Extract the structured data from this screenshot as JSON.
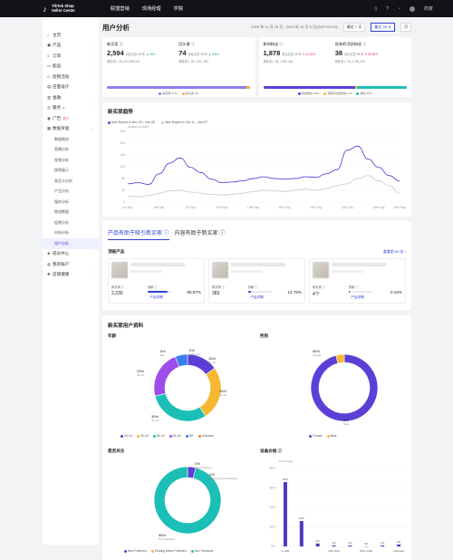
{
  "topbar": {
    "logo_line1": "TikTok Shop",
    "logo_line2": "Seller Center",
    "nav": [
      "联盟营销",
      "现场经理",
      "学院"
    ],
    "user": "商家"
  },
  "sidebar": {
    "items": [
      {
        "label": "主页",
        "icon": "home-icon",
        "glyph": "⌂",
        "arrow": ""
      },
      {
        "label": "产品",
        "icon": "box-icon",
        "glyph": "▣",
        "arrow": "›"
      },
      {
        "label": "订单",
        "icon": "list-icon",
        "glyph": "≡",
        "arrow": "›"
      },
      {
        "label": "船运",
        "icon": "truck-icon",
        "glyph": "▭",
        "arrow": "›"
      },
      {
        "label": "促销活动",
        "icon": "tag-icon",
        "glyph": "◇",
        "arrow": "›"
      },
      {
        "label": "店面设计",
        "icon": "shop-icon",
        "glyph": "▤",
        "arrow": ""
      },
      {
        "label": "金融",
        "icon": "wallet-icon",
        "glyph": "▥",
        "arrow": "›"
      },
      {
        "label": "服务",
        "icon": "service-icon",
        "glyph": "◎",
        "arrow": "›",
        "badge": "●"
      },
      {
        "label": "广告",
        "icon": "ad-icon",
        "glyph": "◉",
        "arrow": "",
        "badge": "热门"
      },
      {
        "label": "数据罗盘",
        "icon": "chart-icon",
        "glyph": "▦",
        "arrow": "⌄"
      }
    ],
    "subitems": [
      "数据概览",
      "直播分析",
      "视频分析",
      "按照展示",
      "商品卡分析",
      "产品分析",
      "服务分析",
      "物流数据",
      "促销分析",
      "市场分析",
      "用户分析"
    ],
    "bottom_items": [
      {
        "label": "成长中心",
        "icon": "growth-icon",
        "glyph": "◈",
        "arrow": "›"
      },
      {
        "label": "我的账户",
        "icon": "user-icon",
        "glyph": "◍",
        "arrow": "›"
      },
      {
        "label": "店铺健康",
        "icon": "health-icon",
        "glyph": "✚",
        "arrow": "›"
      }
    ]
  },
  "page": {
    "title": "用户分析",
    "date_text": "2022 年 11 月 29 日 - 2022 年 12 月 5 日(GMT+07:00)",
    "btn_7d": "最近 7 天",
    "btn_28d": "最近 28 天",
    "btn_month": "月"
  },
  "kpis": {
    "group1": {
      "items": [
        {
          "label": "新买家 ⓘ",
          "value": "2,594",
          "delta_text": "对比过去 28 天",
          "delta": "▲ 16%",
          "dir": "up",
          "sub": "销售收入 Rp 103,958,815"
        },
        {
          "label": "回头客 ⓘ",
          "value": "74",
          "delta_text": "对比过去 28 天",
          "delta": "▲ 236%",
          "dir": "up",
          "sub": "销售收入 Rp 4,301,083"
        }
      ],
      "bar": [
        97,
        3
      ],
      "legend": [
        "新买家 97%",
        "回头客 3%"
      ]
    },
    "group2": {
      "items": [
        {
          "label": "新的粉丝 ⓘ",
          "value": "1,878",
          "delta_text": "对比过去 28 天",
          "delta": "▼ 12.03%",
          "dir": "down",
          "sub": "销售收入 Rp 4,630,451"
        },
        {
          "label": "现有的活跃粉丝 ⓘ",
          "value": "38",
          "delta_text": "对比过去 28 天",
          "delta": "▼ 66.96%",
          "dir": "down",
          "sub": "销售收入 Rp 2,306,039"
        }
      ],
      "bar": [
        64,
        1,
        35
      ],
      "legend": [
        "新的粉丝 64%",
        "现有的活跃粉丝 1%",
        "其他 35%"
      ]
    }
  },
  "trend": {
    "title": "新买家趋势",
    "legend": [
      "New Buyers in Nov 09 – Dec 05",
      "New Buyers in Oct 11 – Nov 07"
    ]
  },
  "products": {
    "tab1": "产品有助于吸引新买家 ⓘ",
    "tab2": "内容有助于新买家 ⓘ",
    "heading": "顶级产品",
    "more": "查看前 50 名 ›",
    "stat_a": "新买家 ⓘ",
    "stat_b": "贡献 ⓘ",
    "link": "产品详情",
    "cards": [
      {
        "buyers": "2,230",
        "pct": "85.97%",
        "fill": 0.86
      },
      {
        "buyers": "383",
        "pct": "14.76%",
        "fill": 0.15
      },
      {
        "buyers": "4个",
        "pct": "0.15%",
        "fill": 0.02
      }
    ]
  },
  "profile": {
    "title": "新买家用户资料",
    "age_title": "年龄",
    "gender_title": "性别",
    "follow_title": "是否关注",
    "price_title": "设备价格 ⓘ",
    "price_axis_title": "Percentage",
    "age_legend": [
      "18–24",
      "25–34",
      "35–44",
      "45–54",
      "55+",
      "Unknown"
    ],
    "gender_legend": [
      "Female",
      "Male"
    ],
    "follow_legend": [
      "New Followers",
      "Existing Active Followers",
      "Non Followers"
    ],
    "colors": {
      "purple": "#5b3fd6",
      "amber": "#f7b733",
      "teal": "#1bbfb6",
      "violet": "#9c4dea",
      "blue": "#3d7bf0",
      "orange": "#f57c2a",
      "grey": "#d9d9d9"
    }
  },
  "chart_data": [
    {
      "type": "line",
      "title": "新买家趋势",
      "ylabel": "Amount of users",
      "x": [
        "Nov 09",
        "Nov 10",
        "Nov 11",
        "Nov 12",
        "Nov 13",
        "Nov 14",
        "Nov 15",
        "Nov 16",
        "Nov 17",
        "Nov 18",
        "Nov 19",
        "Nov 20",
        "Nov 21",
        "Nov 22",
        "Nov 23",
        "Nov 24",
        "Nov 25",
        "Nov 26",
        "Nov 27",
        "Nov 28",
        "Nov 29",
        "Nov 30",
        "Dec 01",
        "Dec 02",
        "Dec 03",
        "Dec 04",
        "Dec 05"
      ],
      "xtick_labels": [
        "1st Day",
        "4th Day",
        "7th Day",
        "10th Day",
        "13th Day",
        "16th Day",
        "19th Day",
        "22th Day",
        "25th Day",
        "28th Day"
      ],
      "ylim": [
        0,
        240
      ],
      "yticks": [
        0,
        40,
        80,
        120,
        160,
        200,
        240
      ],
      "series": [
        {
          "name": "New Buyers in Nov 09 – Dec 05",
          "color": "#5b4bd8",
          "values": [
            62,
            66,
            60,
            96,
            132,
            150,
            118,
            100,
            78,
            66,
            68,
            72,
            80,
            86,
            80,
            78,
            80,
            86,
            84,
            96,
            110,
            176,
            190,
            146,
            118,
            90,
            72
          ]
        },
        {
          "name": "New Buyers in Oct 11 – Nov 07",
          "color": "#cfcfd6",
          "values": [
            20,
            18,
            22,
            30,
            38,
            40,
            34,
            30,
            26,
            24,
            26,
            30,
            36,
            40,
            38,
            36,
            40,
            44,
            40,
            46,
            56,
            62,
            80,
            90,
            72,
            56,
            30
          ]
        }
      ]
    },
    {
      "type": "pie",
      "title": "年龄",
      "categories": [
        "18–24",
        "25–34",
        "35–44",
        "45–54",
        "55+",
        "Unknown"
      ],
      "values": [
        15,
        26,
        30,
        23,
        6,
        0
      ],
      "colors": [
        "#5b3fd6",
        "#f7b733",
        "#1bbfb6",
        "#9c4dea",
        "#3d7bf0",
        "#f57c2a"
      ]
    },
    {
      "type": "pie",
      "title": "性别",
      "categories": [
        "Female",
        "Male"
      ],
      "values": [
        96,
        4
      ],
      "colors": [
        "#5b3fd6",
        "#f7b733"
      ]
    },
    {
      "type": "pie",
      "title": "是否关注",
      "categories": [
        "New Followers",
        "Existing Active Followers",
        "Non Followers"
      ],
      "values": [
        4,
        0,
        96
      ],
      "colors": [
        "#5b3fd6",
        "#f7b733",
        "#1bbfb6"
      ]
    },
    {
      "type": "bar",
      "title": "设备价格",
      "ylabel": "Percentage",
      "categories": [
        "0–200",
        "",
        "",
        "400–600",
        "",
        "600–1000",
        "",
        "Unknown"
      ],
      "values": [
        66,
        26,
        3,
        1,
        1,
        0,
        1,
        2
      ],
      "value_labels": [
        "66%",
        "26%",
        "3%",
        "1%",
        "1%",
        "0%",
        "1%",
        "2%"
      ],
      "ylim": [
        0,
        80
      ],
      "yticks": [
        0,
        20,
        40,
        60,
        80
      ]
    }
  ]
}
